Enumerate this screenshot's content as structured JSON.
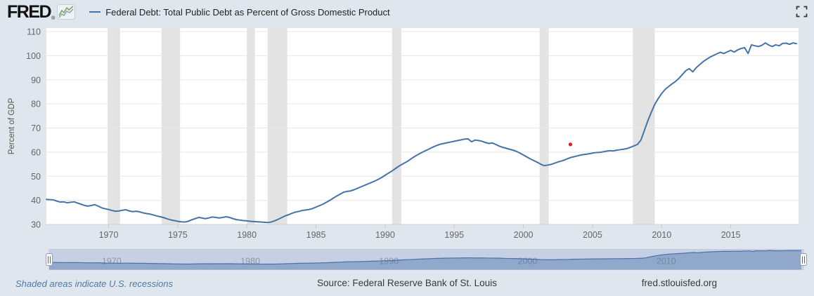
{
  "header": {
    "logo": "FRED",
    "logo_reg": "®",
    "legend_label": "Federal Debt: Total Public Debt as Percent of Gross Domestic Product"
  },
  "icons": {
    "logo_sparkline": "sparkline-icon",
    "fullscreen": "fullscreen-icon",
    "navigator_handle": "drag-handle-icon"
  },
  "footer": {
    "note": "Shaded areas indicate U.S. recessions",
    "source": "Source: Federal Reserve Bank of St. Louis",
    "site": "fred.stlouisfed.org"
  },
  "chart_data": {
    "type": "line",
    "title": "Federal Debt: Total Public Debt as Percent of Gross Domestic Product",
    "xlabel": "",
    "ylabel": "Percent of GDP",
    "legend_position": "top",
    "grid": true,
    "ylim": [
      30,
      110
    ],
    "y_ticks": [
      30,
      40,
      50,
      60,
      70,
      80,
      90,
      100,
      110
    ],
    "x_ticks": [
      1970,
      1975,
      1980,
      1985,
      1990,
      1995,
      2000,
      2005,
      2010,
      2015
    ],
    "x_domain": [
      1965.5,
      2019.9
    ],
    "x_start": 1965.5,
    "x_step": 0.25,
    "series": [
      {
        "name": "Federal Debt: Total Public Debt as Percent of Gross Domestic Product",
        "frequency": "quarterly",
        "values": [
          40.4,
          40.3,
          40.2,
          39.7,
          39.3,
          39.4,
          39.0,
          39.2,
          39.4,
          38.9,
          38.4,
          37.9,
          37.6,
          37.9,
          38.2,
          37.6,
          36.9,
          36.5,
          36.2,
          35.8,
          35.5,
          35.6,
          35.9,
          36.1,
          35.6,
          35.3,
          35.5,
          35.2,
          34.8,
          34.5,
          34.3,
          33.9,
          33.5,
          33.2,
          32.8,
          32.3,
          31.9,
          31.6,
          31.3,
          31.1,
          31.0,
          31.3,
          31.9,
          32.4,
          32.9,
          32.7,
          32.4,
          32.7,
          33.1,
          32.9,
          32.7,
          32.9,
          33.2,
          32.9,
          32.4,
          32.0,
          31.8,
          31.6,
          31.5,
          31.3,
          31.2,
          31.1,
          31.0,
          30.9,
          30.8,
          31.0,
          31.5,
          32.1,
          32.8,
          33.5,
          34.0,
          34.6,
          35.1,
          35.4,
          35.8,
          36.0,
          36.2,
          36.6,
          37.2,
          37.8,
          38.4,
          39.2,
          40.0,
          40.9,
          41.8,
          42.6,
          43.4,
          43.7,
          43.9,
          44.4,
          45.0,
          45.6,
          46.2,
          46.8,
          47.4,
          48.0,
          48.7,
          49.5,
          50.4,
          51.3,
          52.2,
          53.2,
          54.2,
          55.0,
          55.8,
          56.7,
          57.7,
          58.6,
          59.4,
          60.1,
          60.8,
          61.5,
          62.2,
          62.8,
          63.3,
          63.6,
          63.9,
          64.2,
          64.5,
          64.8,
          65.1,
          65.4,
          65.5,
          64.3,
          65.0,
          64.8,
          64.5,
          64.0,
          63.6,
          63.8,
          63.2,
          62.5,
          62.0,
          61.6,
          61.2,
          60.8,
          60.3,
          59.6,
          58.8,
          58.0,
          57.2,
          56.5,
          55.8,
          55.0,
          54.4,
          54.6,
          54.9,
          55.4,
          55.9,
          56.3,
          56.8,
          57.4,
          57.9,
          58.2,
          58.6,
          58.9,
          59.1,
          59.3,
          59.6,
          59.8,
          59.9,
          60.1,
          60.4,
          60.6,
          60.5,
          60.8,
          61.0,
          61.2,
          61.5,
          62.0,
          62.6,
          63.2,
          65.0,
          69.0,
          73.0,
          76.5,
          79.8,
          82.2,
          84.3,
          86.0,
          87.2,
          88.3,
          89.3,
          90.6,
          92.2,
          93.8,
          94.6,
          93.3,
          95.0,
          96.3,
          97.5,
          98.5,
          99.4,
          100.1,
          100.8,
          101.4,
          100.9,
          101.6,
          102.2,
          101.5,
          102.4,
          103.0,
          103.3,
          100.9,
          104.5,
          104.1,
          103.8,
          104.3,
          105.3,
          104.4,
          103.8,
          104.5,
          104.1,
          105.1,
          105.2,
          104.7,
          105.3,
          105.0
        ]
      }
    ],
    "marker_point": {
      "x": 2003.4,
      "y": 63.2,
      "color": "#e02020"
    },
    "recessions": [
      [
        1969.92,
        1970.83
      ],
      [
        1973.83,
        1975.17
      ],
      [
        1980.0,
        1980.58
      ],
      [
        1981.5,
        1982.92
      ],
      [
        1990.5,
        1991.17
      ],
      [
        2001.17,
        2001.83
      ],
      [
        2007.92,
        2009.5
      ]
    ],
    "navigator": {
      "labels": [
        "1970",
        "1980",
        "1990",
        "2000",
        "2010"
      ],
      "label_years": [
        1970,
        1980,
        1990,
        2000,
        2010
      ],
      "ylim": [
        0,
        112
      ]
    },
    "colors": {
      "line": "#4572a7",
      "grid": "#e7e7e7",
      "axis_line": "#cfd0d1",
      "recession": "#e3e3e3",
      "plot_bg": "#ffffff",
      "page_bg": "#e0e6ed",
      "tick_label": "#666666",
      "y_title": "#555555",
      "nav_bg": "#c6d0e5",
      "nav_area": "rgba(69,114,167,0.42)",
      "nav_line": "#4a70a9",
      "nav_label": "#8d96a3"
    }
  }
}
